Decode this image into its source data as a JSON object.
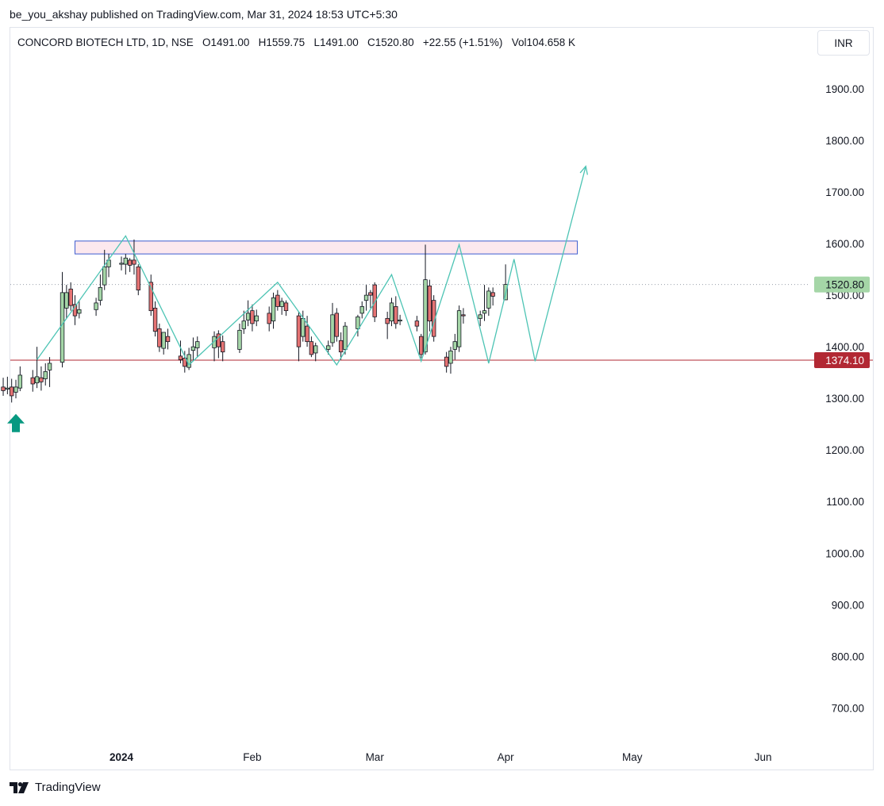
{
  "publisher_line": "be_you_akshay published on TradingView.com, Mar 31, 2024 18:53 UTC+5:30",
  "legend": {
    "name": "CONCORD BIOTECH LTD, 1D, NSE",
    "open": "O1491.00",
    "high": "H1559.75",
    "low": "L1491.00",
    "close": "C1520.80",
    "change": "+22.55 (+1.51%)",
    "volume": "Vol104.658 K"
  },
  "currency_label": "INR",
  "brand_label": "TradingView",
  "colors": {
    "up_fill": "#a5d6a7",
    "down_fill": "#e57373",
    "wick": "#131722",
    "zigzag": "#4dc4b4",
    "support": "#b22833",
    "resistance_border": "#3d5ccf",
    "resistance_fill": "#fce8ee",
    "last_price_badge": "#a5d6a7",
    "support_badge": "#b22833",
    "arrow": "#089981"
  },
  "chart_data": {
    "type": "candlestick",
    "y_axis": {
      "ticks": [
        1900,
        1800,
        1700,
        1600,
        1500,
        1400,
        1300,
        1200,
        1100,
        1000,
        900,
        800,
        700
      ],
      "tick_labels": [
        "1900.00",
        "1800.00",
        "1700.00",
        "1600.00",
        "1500.00",
        "1400.00",
        "1300.00",
        "1200.00",
        "1100.00",
        "1000.00",
        "900.00",
        "800.00",
        "700.00"
      ]
    },
    "x_axis": {
      "labels": [
        {
          "text": "2024",
          "date": "2024-01-01",
          "bold": true
        },
        {
          "text": "Feb",
          "date": "2024-02-01",
          "bold": false
        },
        {
          "text": "Mar",
          "date": "2024-03-01",
          "bold": false
        },
        {
          "text": "Apr",
          "date": "2024-04-01",
          "bold": false
        },
        {
          "text": "May",
          "date": "2024-05-01",
          "bold": false
        },
        {
          "text": "Jun",
          "date": "2024-06-01",
          "bold": false
        }
      ]
    },
    "last_price": {
      "value": 1520.8,
      "label": "1520.80"
    },
    "support": {
      "value": 1374.1,
      "label": "1374.10"
    },
    "resistance_zone": {
      "from": 1580,
      "to": 1605,
      "start": "2023-12-21",
      "end": "2024-04-18"
    },
    "buy_arrow": {
      "date": "2023-12-07",
      "price": 1270
    },
    "candles": [
      {
        "d": "2023-11-29",
        "o": 1358,
        "h": 1372,
        "l": 1330,
        "c": 1340
      },
      {
        "d": "2023-11-30",
        "o": 1345,
        "h": 1360,
        "l": 1315,
        "c": 1325
      },
      {
        "d": "2023-12-01",
        "o": 1330,
        "h": 1348,
        "l": 1308,
        "c": 1318
      },
      {
        "d": "2023-12-04",
        "o": 1322,
        "h": 1340,
        "l": 1305,
        "c": 1315
      },
      {
        "d": "2023-12-05",
        "o": 1318,
        "h": 1342,
        "l": 1308,
        "c": 1320
      },
      {
        "d": "2023-12-06",
        "o": 1322,
        "h": 1338,
        "l": 1292,
        "c": 1305
      },
      {
        "d": "2023-12-07",
        "o": 1312,
        "h": 1336,
        "l": 1300,
        "c": 1322
      },
      {
        "d": "2023-12-08",
        "o": 1320,
        "h": 1362,
        "l": 1314,
        "c": 1345
      },
      {
        "d": "2023-12-11",
        "o": 1340,
        "h": 1355,
        "l": 1313,
        "c": 1328
      },
      {
        "d": "2023-12-12",
        "o": 1330,
        "h": 1400,
        "l": 1320,
        "c": 1342
      },
      {
        "d": "2023-12-13",
        "o": 1340,
        "h": 1362,
        "l": 1315,
        "c": 1332
      },
      {
        "d": "2023-12-14",
        "o": 1338,
        "h": 1368,
        "l": 1325,
        "c": 1352
      },
      {
        "d": "2023-12-15",
        "o": 1355,
        "h": 1380,
        "l": 1322,
        "c": 1368
      },
      {
        "d": "2023-12-18",
        "o": 1370,
        "h": 1545,
        "l": 1360,
        "c": 1505
      },
      {
        "d": "2023-12-19",
        "o": 1475,
        "h": 1520,
        "l": 1455,
        "c": 1505
      },
      {
        "d": "2023-12-20",
        "o": 1512,
        "h": 1525,
        "l": 1470,
        "c": 1480
      },
      {
        "d": "2023-12-21",
        "o": 1482,
        "h": 1500,
        "l": 1442,
        "c": 1460
      },
      {
        "d": "2023-12-22",
        "o": 1465,
        "h": 1490,
        "l": 1455,
        "c": 1472
      },
      {
        "d": "2023-12-26",
        "o": 1472,
        "h": 1495,
        "l": 1460,
        "c": 1485
      },
      {
        "d": "2023-12-27",
        "o": 1490,
        "h": 1540,
        "l": 1480,
        "c": 1515
      },
      {
        "d": "2023-12-28",
        "o": 1520,
        "h": 1588,
        "l": 1510,
        "c": 1555
      },
      {
        "d": "2023-12-29",
        "o": 1555,
        "h": 1580,
        "l": 1535,
        "c": 1568
      },
      {
        "d": "2024-01-01",
        "o": 1560,
        "h": 1575,
        "l": 1548,
        "c": 1562
      },
      {
        "d": "2024-01-02",
        "o": 1560,
        "h": 1580,
        "l": 1540,
        "c": 1572
      },
      {
        "d": "2024-01-03",
        "o": 1568,
        "h": 1572,
        "l": 1545,
        "c": 1558
      },
      {
        "d": "2024-01-04",
        "o": 1568,
        "h": 1608,
        "l": 1540,
        "c": 1560
      },
      {
        "d": "2024-01-05",
        "o": 1555,
        "h": 1560,
        "l": 1500,
        "c": 1510
      },
      {
        "d": "2024-01-08",
        "o": 1525,
        "h": 1540,
        "l": 1460,
        "c": 1470
      },
      {
        "d": "2024-01-09",
        "o": 1475,
        "h": 1488,
        "l": 1420,
        "c": 1430
      },
      {
        "d": "2024-01-10",
        "o": 1435,
        "h": 1445,
        "l": 1390,
        "c": 1400
      },
      {
        "d": "2024-01-11",
        "o": 1397,
        "h": 1428,
        "l": 1385,
        "c": 1428
      },
      {
        "d": "2024-01-12",
        "o": 1420,
        "h": 1435,
        "l": 1395,
        "c": 1410
      },
      {
        "d": "2024-01-15",
        "o": 1382,
        "h": 1412,
        "l": 1368,
        "c": 1375
      },
      {
        "d": "2024-01-16",
        "o": 1378,
        "h": 1392,
        "l": 1350,
        "c": 1362
      },
      {
        "d": "2024-01-17",
        "o": 1360,
        "h": 1398,
        "l": 1355,
        "c": 1385
      },
      {
        "d": "2024-01-18",
        "o": 1393,
        "h": 1418,
        "l": 1372,
        "c": 1400
      },
      {
        "d": "2024-01-19",
        "o": 1398,
        "h": 1420,
        "l": 1380,
        "c": 1410
      },
      {
        "d": "2024-01-23",
        "o": 1398,
        "h": 1430,
        "l": 1372,
        "c": 1420
      },
      {
        "d": "2024-01-24",
        "o": 1425,
        "h": 1432,
        "l": 1378,
        "c": 1400
      },
      {
        "d": "2024-01-25",
        "o": 1410,
        "h": 1422,
        "l": 1372,
        "c": 1390
      },
      {
        "d": "2024-01-29",
        "o": 1395,
        "h": 1445,
        "l": 1388,
        "c": 1432
      },
      {
        "d": "2024-01-30",
        "o": 1435,
        "h": 1470,
        "l": 1425,
        "c": 1450
      },
      {
        "d": "2024-01-31",
        "o": 1452,
        "h": 1490,
        "l": 1440,
        "c": 1465
      },
      {
        "d": "2024-02-01",
        "o": 1470,
        "h": 1482,
        "l": 1430,
        "c": 1445
      },
      {
        "d": "2024-02-02",
        "o": 1450,
        "h": 1472,
        "l": 1440,
        "c": 1460
      },
      {
        "d": "2024-02-05",
        "o": 1465,
        "h": 1478,
        "l": 1430,
        "c": 1445
      },
      {
        "d": "2024-02-06",
        "o": 1450,
        "h": 1505,
        "l": 1435,
        "c": 1495
      },
      {
        "d": "2024-02-07",
        "o": 1500,
        "h": 1510,
        "l": 1470,
        "c": 1478
      },
      {
        "d": "2024-02-08",
        "o": 1478,
        "h": 1495,
        "l": 1462,
        "c": 1488
      },
      {
        "d": "2024-02-09",
        "o": 1485,
        "h": 1490,
        "l": 1460,
        "c": 1470
      },
      {
        "d": "2024-02-12",
        "o": 1460,
        "h": 1468,
        "l": 1372,
        "c": 1400
      },
      {
        "d": "2024-02-13",
        "o": 1420,
        "h": 1470,
        "l": 1410,
        "c": 1455
      },
      {
        "d": "2024-02-14",
        "o": 1440,
        "h": 1460,
        "l": 1400,
        "c": 1410
      },
      {
        "d": "2024-02-15",
        "o": 1410,
        "h": 1420,
        "l": 1380,
        "c": 1385
      },
      {
        "d": "2024-02-16",
        "o": 1388,
        "h": 1408,
        "l": 1372,
        "c": 1402
      },
      {
        "d": "2024-02-19",
        "o": 1395,
        "h": 1412,
        "l": 1385,
        "c": 1402
      },
      {
        "d": "2024-02-20",
        "o": 1408,
        "h": 1485,
        "l": 1400,
        "c": 1462
      },
      {
        "d": "2024-02-21",
        "o": 1465,
        "h": 1475,
        "l": 1410,
        "c": 1420
      },
      {
        "d": "2024-02-22",
        "o": 1412,
        "h": 1428,
        "l": 1375,
        "c": 1390
      },
      {
        "d": "2024-02-23",
        "o": 1395,
        "h": 1448,
        "l": 1385,
        "c": 1440
      },
      {
        "d": "2024-02-26",
        "o": 1435,
        "h": 1462,
        "l": 1420,
        "c": 1458
      },
      {
        "d": "2024-02-27",
        "o": 1465,
        "h": 1488,
        "l": 1455,
        "c": 1478
      },
      {
        "d": "2024-02-28",
        "o": 1490,
        "h": 1520,
        "l": 1470,
        "c": 1500
      },
      {
        "d": "2024-02-29",
        "o": 1505,
        "h": 1510,
        "l": 1475,
        "c": 1500
      },
      {
        "d": "2024-03-01",
        "o": 1520,
        "h": 1525,
        "l": 1448,
        "c": 1458
      },
      {
        "d": "2024-03-04",
        "o": 1455,
        "h": 1468,
        "l": 1415,
        "c": 1445
      },
      {
        "d": "2024-03-05",
        "o": 1450,
        "h": 1495,
        "l": 1440,
        "c": 1485
      },
      {
        "d": "2024-03-06",
        "o": 1478,
        "h": 1498,
        "l": 1435,
        "c": 1445
      },
      {
        "d": "2024-03-07",
        "o": 1450,
        "h": 1462,
        "l": 1442,
        "c": 1452
      },
      {
        "d": "2024-03-11",
        "o": 1450,
        "h": 1460,
        "l": 1430,
        "c": 1440
      },
      {
        "d": "2024-03-12",
        "o": 1420,
        "h": 1425,
        "l": 1378,
        "c": 1385
      },
      {
        "d": "2024-03-13",
        "o": 1390,
        "h": 1598,
        "l": 1385,
        "c": 1530
      },
      {
        "d": "2024-03-14",
        "o": 1518,
        "h": 1530,
        "l": 1430,
        "c": 1450
      },
      {
        "d": "2024-03-15",
        "o": 1490,
        "h": 1500,
        "l": 1410,
        "c": 1420
      },
      {
        "d": "2024-03-18",
        "o": 1380,
        "h": 1390,
        "l": 1350,
        "c": 1362
      },
      {
        "d": "2024-03-19",
        "o": 1368,
        "h": 1400,
        "l": 1348,
        "c": 1392
      },
      {
        "d": "2024-03-20",
        "o": 1395,
        "h": 1425,
        "l": 1375,
        "c": 1410
      },
      {
        "d": "2024-03-21",
        "o": 1400,
        "h": 1480,
        "l": 1390,
        "c": 1470
      },
      {
        "d": "2024-03-22",
        "o": 1462,
        "h": 1475,
        "l": 1445,
        "c": 1460
      },
      {
        "d": "2024-03-26",
        "o": 1455,
        "h": 1470,
        "l": 1440,
        "c": 1462
      },
      {
        "d": "2024-03-27",
        "o": 1465,
        "h": 1520,
        "l": 1450,
        "c": 1470
      },
      {
        "d": "2024-03-28",
        "o": 1475,
        "h": 1515,
        "l": 1460,
        "c": 1508
      },
      {
        "d": "2024-03-29",
        "o": 1505,
        "h": 1515,
        "l": 1480,
        "c": 1498
      },
      {
        "d": "2024-04-01",
        "o": 1491,
        "h": 1559.75,
        "l": 1491,
        "c": 1520.8
      }
    ],
    "zigzag": [
      {
        "d": "2023-12-12",
        "p": 1375
      },
      {
        "d": "2024-01-02",
        "p": 1615
      },
      {
        "d": "2024-01-17",
        "p": 1365
      },
      {
        "d": "2024-02-07",
        "p": 1525
      },
      {
        "d": "2024-02-21",
        "p": 1365
      },
      {
        "d": "2024-03-05",
        "p": 1540
      },
      {
        "d": "2024-03-12",
        "p": 1372
      },
      {
        "d": "2024-03-21",
        "p": 1598
      },
      {
        "d": "2024-03-28",
        "p": 1368
      },
      {
        "d": "2024-04-03",
        "p": 1570
      },
      {
        "d": "2024-04-08",
        "p": 1372
      },
      {
        "d": "2024-04-20",
        "p": 1750
      }
    ]
  }
}
